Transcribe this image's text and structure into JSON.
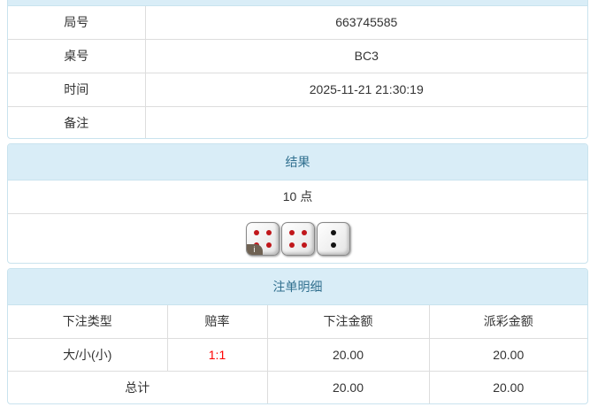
{
  "info": {
    "rows": [
      {
        "label": "局号",
        "value": "663745585"
      },
      {
        "label": "桌号",
        "value": "BC3"
      },
      {
        "label": "时间",
        "value": "2025-11-21 21:30:19"
      },
      {
        "label": "备注",
        "value": ""
      }
    ]
  },
  "result": {
    "title": "结果",
    "points": "10 点",
    "dice": [
      4,
      4,
      2
    ],
    "badge": "i",
    "pip_colors": {
      "red": "#c0161a",
      "black": "#111111"
    }
  },
  "bets": {
    "title": "注单明细",
    "headers": [
      "下注类型",
      "赔率",
      "下注金额",
      "派彩金额"
    ],
    "rows": [
      {
        "type": "大/小(小)",
        "odds": "1:1",
        "amount": "20.00",
        "payout": "20.00"
      }
    ],
    "total": {
      "label": "总计",
      "amount": "20.00",
      "payout": "20.00"
    },
    "odds_color": "#ff0000"
  }
}
